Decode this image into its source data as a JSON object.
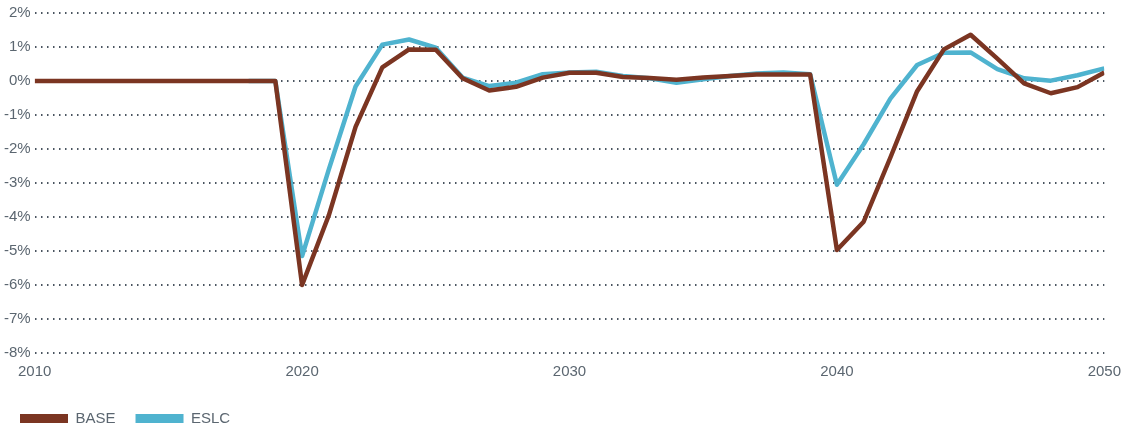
{
  "chart_data": {
    "type": "line",
    "x": [
      2010,
      2011,
      2012,
      2013,
      2014,
      2015,
      2016,
      2017,
      2018,
      2019,
      2020,
      2021,
      2022,
      2023,
      2024,
      2025,
      2026,
      2027,
      2028,
      2029,
      2030,
      2031,
      2032,
      2033,
      2034,
      2035,
      2036,
      2037,
      2038,
      2039,
      2040,
      2041,
      2042,
      2043,
      2044,
      2045,
      2046,
      2047,
      2048,
      2049,
      2050
    ],
    "series": [
      {
        "name": "BASE",
        "color": "#7b3522",
        "values": [
          0,
          0,
          0,
          0,
          0,
          0,
          0,
          0,
          0,
          0,
          -6.0,
          -3.95,
          -1.35,
          0.4,
          0.93,
          0.92,
          0.08,
          -0.28,
          -0.17,
          0.1,
          0.24,
          0.24,
          0.12,
          0.09,
          0.04,
          0.1,
          0.15,
          0.19,
          0.19,
          0.19,
          -4.97,
          -4.14,
          -2.25,
          -0.3,
          0.93,
          1.36,
          0.66,
          -0.07,
          -0.36,
          -0.18,
          0.25
        ]
      },
      {
        "name": "ESLC",
        "color": "#4fb3cf",
        "values": [
          null,
          null,
          null,
          null,
          null,
          null,
          null,
          null,
          0,
          0,
          -5.15,
          -2.6,
          -0.16,
          1.07,
          1.22,
          0.98,
          0.1,
          -0.15,
          -0.05,
          0.2,
          0.25,
          0.27,
          0.15,
          0.08,
          -0.05,
          0.05,
          0.15,
          0.22,
          0.25,
          0.2,
          -3.05,
          -1.86,
          -0.52,
          0.47,
          0.83,
          0.84,
          0.35,
          0.08,
          0.01,
          0.17,
          0.37
        ]
      }
    ],
    "xlim": [
      2010,
      2050
    ],
    "xticks": [
      2010,
      2020,
      2030,
      2040,
      2050
    ],
    "ylim": [
      -8,
      2
    ],
    "yticks": [
      {
        "value": -8,
        "label": "-8%"
      },
      {
        "value": -7,
        "label": "-7%"
      },
      {
        "value": -6,
        "label": "-6%"
      },
      {
        "value": -5,
        "label": "-5%"
      },
      {
        "value": -4,
        "label": "-4%"
      },
      {
        "value": -3,
        "label": "-3%"
      },
      {
        "value": -2,
        "label": "-2%"
      },
      {
        "value": -1,
        "label": "-1%"
      },
      {
        "value": 0,
        "label": "0%"
      },
      {
        "value": 1,
        "label": "1%"
      },
      {
        "value": 2,
        "label": "2%"
      }
    ],
    "grid": "y",
    "legend": "bottom left",
    "marker": "none",
    "line_style": "solid"
  }
}
